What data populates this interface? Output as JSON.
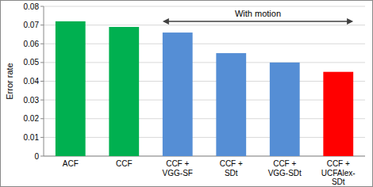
{
  "chart_data": {
    "type": "bar",
    "y_label": "Error rate",
    "annotation": "With motion",
    "categories": [
      "ACF",
      "CCF",
      "CCF + VGG-SF",
      "CCF + SDt",
      "CCF + VGG-SDt",
      "CCF + UCFAlex-SDt"
    ],
    "values": [
      0.072,
      0.069,
      0.066,
      0.055,
      0.05,
      0.045
    ],
    "colors": [
      "#00b050",
      "#00b050",
      "#558ed5",
      "#558ed5",
      "#558ed5",
      "#ff0000"
    ],
    "ylim": [
      0,
      0.08
    ],
    "yticks": [
      0,
      0.01,
      0.02,
      0.03,
      0.04,
      0.05,
      0.06,
      0.07,
      0.08
    ],
    "grid": true
  }
}
